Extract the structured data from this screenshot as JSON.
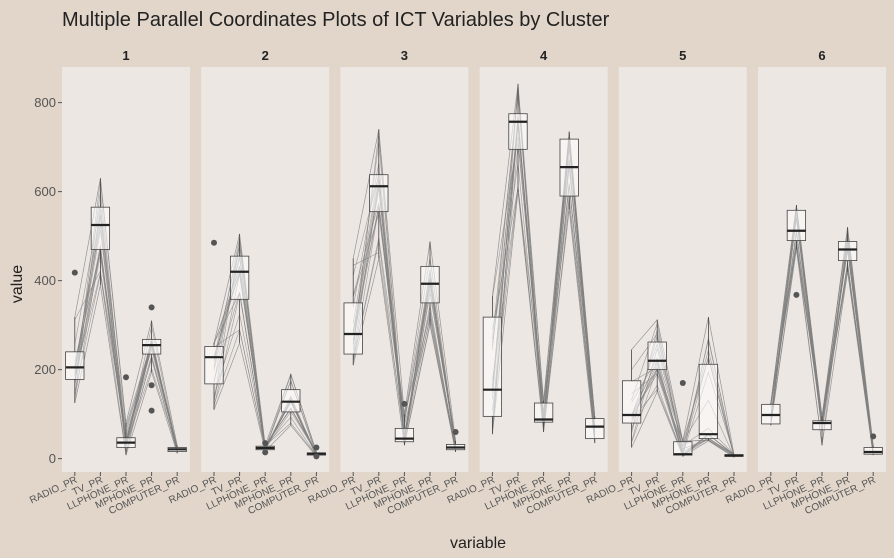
{
  "chart_data": {
    "type": "parallel-coordinates-boxplot",
    "title": "Multiple Parallel Coordinates Plots of ICT Variables by Cluster",
    "xlabel": "variable",
    "ylabel": "value",
    "ylim": [
      -30,
      880
    ],
    "yticks": [
      0,
      200,
      400,
      600,
      800
    ],
    "variables": [
      "RADIO_PR",
      "TV_PR",
      "LLPHONE_PR",
      "MPHONE_PR",
      "COMPUTER_PR"
    ],
    "grid": "off",
    "colors": {
      "page_bg": "#e2d6ca",
      "panel_bg": "#ede7e3",
      "line": "#808080",
      "box_fill": "#ffffff",
      "box_stroke": "#444444",
      "outlier": "#555555"
    },
    "panels": [
      {
        "label": "1",
        "boxes": [
          {
            "q1": 178,
            "median": 205,
            "q3": 240,
            "whisker_low": 125,
            "whisker_high": 318,
            "outliers": [
              418
            ]
          },
          {
            "q1": 470,
            "median": 525,
            "q3": 565,
            "whisker_low": 390,
            "whisker_high": 630,
            "outliers": []
          },
          {
            "q1": 25,
            "median": 36,
            "q3": 47,
            "whisker_low": 8,
            "whisker_high": 80,
            "outliers": [
              183
            ]
          },
          {
            "q1": 235,
            "median": 255,
            "q3": 268,
            "whisker_low": 195,
            "whisker_high": 310,
            "outliers": [
              340,
              165,
              108
            ]
          },
          {
            "q1": 16,
            "median": 21,
            "q3": 25,
            "whisker_low": 12,
            "whisker_high": 30,
            "outliers": []
          }
        ]
      },
      {
        "label": "2",
        "boxes": [
          {
            "q1": 168,
            "median": 228,
            "q3": 252,
            "whisker_low": 110,
            "whisker_high": 260,
            "outliers": [
              485
            ]
          },
          {
            "q1": 358,
            "median": 420,
            "q3": 455,
            "whisker_low": 260,
            "whisker_high": 505,
            "outliers": []
          },
          {
            "q1": 20,
            "median": 24,
            "q3": 28,
            "whisker_low": 17,
            "whisker_high": 30,
            "outliers": [
              35,
              14
            ]
          },
          {
            "q1": 105,
            "median": 128,
            "q3": 155,
            "whisker_low": 75,
            "whisker_high": 190,
            "outliers": []
          },
          {
            "q1": 8,
            "median": 11,
            "q3": 13,
            "whisker_low": 5,
            "whisker_high": 15,
            "outliers": [
              25,
              5
            ]
          }
        ]
      },
      {
        "label": "3",
        "boxes": [
          {
            "q1": 235,
            "median": 280,
            "q3": 350,
            "whisker_low": 210,
            "whisker_high": 450,
            "outliers": []
          },
          {
            "q1": 555,
            "median": 612,
            "q3": 638,
            "whisker_low": 450,
            "whisker_high": 740,
            "outliers": []
          },
          {
            "q1": 38,
            "median": 45,
            "q3": 68,
            "whisker_low": 30,
            "whisker_high": 100,
            "outliers": [
              123
            ]
          },
          {
            "q1": 350,
            "median": 393,
            "q3": 432,
            "whisker_low": 300,
            "whisker_high": 488,
            "outliers": []
          },
          {
            "q1": 20,
            "median": 25,
            "q3": 32,
            "whisker_low": 15,
            "whisker_high": 40,
            "outliers": [
              60
            ]
          }
        ]
      },
      {
        "label": "4",
        "boxes": [
          {
            "q1": 95,
            "median": 155,
            "q3": 318,
            "whisker_low": 55,
            "whisker_high": 365,
            "outliers": []
          },
          {
            "q1": 695,
            "median": 757,
            "q3": 775,
            "whisker_low": 600,
            "whisker_high": 842,
            "outliers": []
          },
          {
            "q1": 82,
            "median": 88,
            "q3": 125,
            "whisker_low": 60,
            "whisker_high": 130,
            "outliers": []
          },
          {
            "q1": 590,
            "median": 655,
            "q3": 718,
            "whisker_low": 560,
            "whisker_high": 735,
            "outliers": []
          },
          {
            "q1": 45,
            "median": 72,
            "q3": 90,
            "whisker_low": 35,
            "whisker_high": 95,
            "outliers": []
          }
        ]
      },
      {
        "label": "5",
        "boxes": [
          {
            "q1": 80,
            "median": 98,
            "q3": 175,
            "whisker_low": 25,
            "whisker_high": 245,
            "outliers": []
          },
          {
            "q1": 200,
            "median": 220,
            "q3": 262,
            "whisker_low": 150,
            "whisker_high": 312,
            "outliers": []
          },
          {
            "q1": 8,
            "median": 10,
            "q3": 38,
            "whisker_low": 5,
            "whisker_high": 40,
            "outliers": [
              170
            ]
          },
          {
            "q1": 45,
            "median": 55,
            "q3": 212,
            "whisker_low": 40,
            "whisker_high": 318,
            "outliers": []
          },
          {
            "q1": 5,
            "median": 7,
            "q3": 9,
            "whisker_low": 3,
            "whisker_high": 10,
            "outliers": []
          }
        ]
      },
      {
        "label": "6",
        "boxes": [
          {
            "q1": 78,
            "median": 98,
            "q3": 122,
            "whisker_low": 75,
            "whisker_high": 125,
            "outliers": []
          },
          {
            "q1": 490,
            "median": 512,
            "q3": 558,
            "whisker_low": 470,
            "whisker_high": 570,
            "outliers": [
              368
            ]
          },
          {
            "q1": 65,
            "median": 80,
            "q3": 85,
            "whisker_low": 30,
            "whisker_high": 95,
            "outliers": []
          },
          {
            "q1": 445,
            "median": 470,
            "q3": 488,
            "whisker_low": 420,
            "whisker_high": 520,
            "outliers": []
          },
          {
            "q1": 10,
            "median": 15,
            "q3": 25,
            "whisker_low": 8,
            "whisker_high": 30,
            "outliers": [
              50
            ]
          }
        ]
      }
    ]
  }
}
